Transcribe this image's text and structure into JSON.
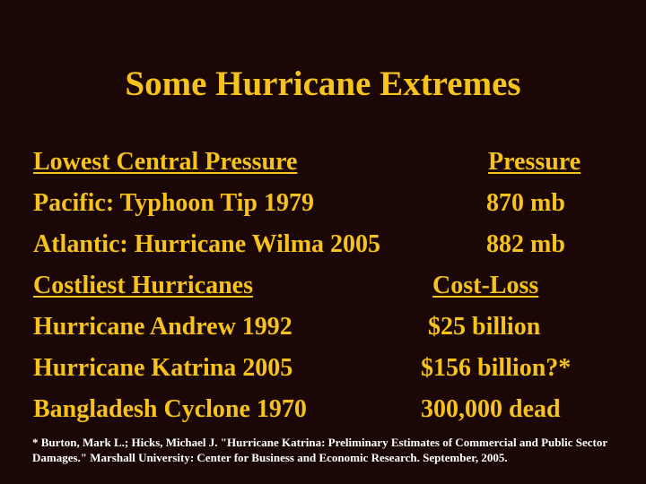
{
  "slide": {
    "title": "Some Hurricane Extremes",
    "rows": [
      {
        "left": "Lowest Central Pressure",
        "right": "Pressure",
        "header": true
      },
      {
        "left": "Pacific: Typhoon Tip 1979",
        "right": "870 mb",
        "header": false
      },
      {
        "left": "Atlantic: Hurricane Wilma 2005",
        "right": "882 mb",
        "header": false
      },
      {
        "left": "Costliest Hurricanes",
        "right": "Cost-Loss",
        "header": true
      },
      {
        "left": "Hurricane Andrew 1992",
        "right": "$25 billion",
        "header": false
      },
      {
        "left": "Hurricane Katrina 2005",
        "right": "$156 billion?*",
        "header": false
      },
      {
        "left": "Bangladesh Cyclone 1970",
        "right": "300,000 dead",
        "header": false
      }
    ],
    "footnote": "* Burton, Mark L.; Hicks, Michael J. \"Hurricane Katrina: Preliminary Estimates of Commercial and Public Sector Damages.\" Marshall University: Center for Business and Economic Research. September, 2005.",
    "colors": {
      "background": "#1b0706",
      "text": "#f6c21c",
      "footnote": "#ffffff"
    }
  }
}
